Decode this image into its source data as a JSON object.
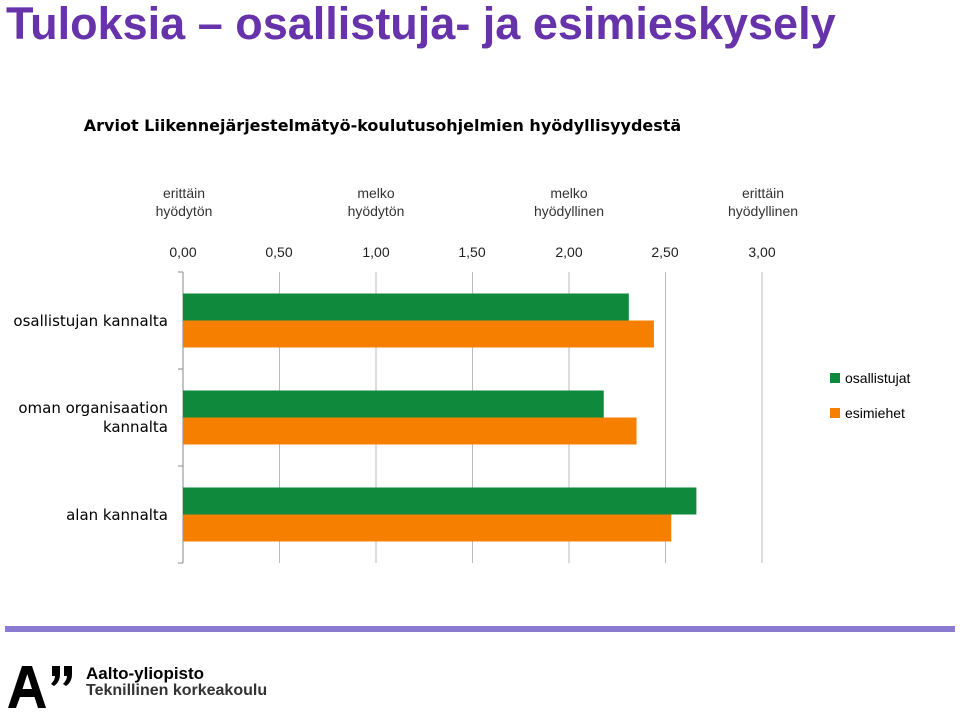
{
  "slide_title": "Tuloksia – osallistuja- ja esimieskysely",
  "scale_labels": [
    {
      "line1": "erittäin",
      "line2": "hyödytön"
    },
    {
      "line1": "melko",
      "line2": "hyödytön"
    },
    {
      "line1": "melko",
      "line2": "hyödyllinen"
    },
    {
      "line1": "erittäin",
      "line2": "hyödyllinen"
    }
  ],
  "chart_data": {
    "type": "bar",
    "orientation": "horizontal",
    "title": "Arviot Liikennejärjestelmätyö-koulutusohjelmien hyödyllisyydestä",
    "categories": [
      "osallistujan kannalta",
      "oman organisaation kannalta",
      "alan kannalta"
    ],
    "category_lines": [
      [
        "osallistujan kannalta"
      ],
      [
        "oman organisaation",
        "kannalta"
      ],
      [
        "alan kannalta"
      ]
    ],
    "series": [
      {
        "name": "osallistujat",
        "color": "#0f8a3c",
        "values": [
          2.31,
          2.18,
          2.66
        ]
      },
      {
        "name": "esimiehet",
        "color": "#f77f00",
        "values": [
          2.44,
          2.35,
          2.53
        ]
      }
    ],
    "xlim": [
      0,
      3
    ],
    "xticks": [
      "0,00",
      "0,50",
      "1,00",
      "1,50",
      "2,00",
      "2,50",
      "3,00"
    ],
    "grid": true,
    "legend": "right"
  },
  "footer": {
    "university": "Aalto-yliopisto",
    "school": "Teknillinen korkeakoulu"
  }
}
